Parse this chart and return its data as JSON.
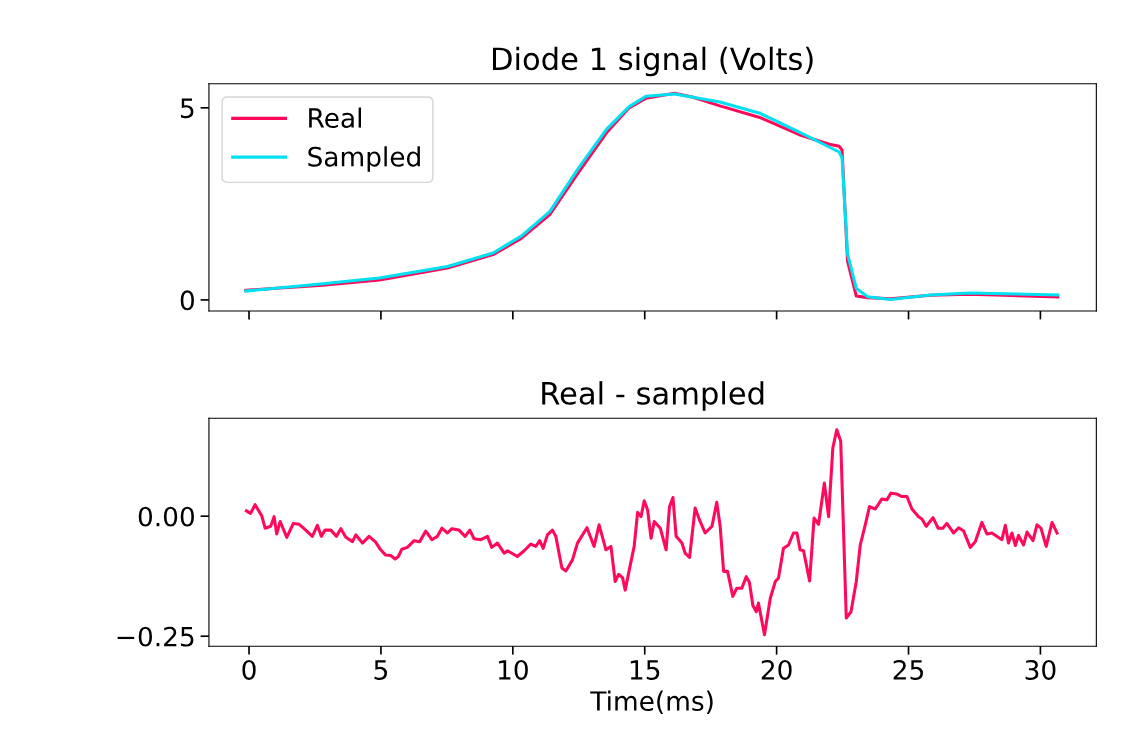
{
  "chart_data": [
    {
      "type": "line",
      "title": "Diode 1 signal (Volts)",
      "xlim": [
        -1.52,
        32.12
      ],
      "xticks": [
        0,
        5,
        10,
        15,
        20,
        25,
        30
      ],
      "ylim": [
        -0.29,
        5.625
      ],
      "yticks": [
        0,
        5
      ],
      "tick_labels": "y",
      "legend": "top left",
      "grid": false,
      "series": [
        {
          "name": "Real",
          "color": "#ff0a5a",
          "x": [
            -0.12,
            2.79,
            4.94,
            7.52,
            9.25,
            10.32,
            11.4,
            12.47,
            13.55,
            14.41,
            15.05,
            16.13,
            16.8,
            17.85,
            19.36,
            20.86,
            22.0,
            22.37,
            22.48,
            22.69,
            23.02,
            23.45,
            24.31,
            25.82,
            27.32,
            28.61,
            30.66
          ],
          "values": [
            0.25,
            0.38,
            0.52,
            0.83,
            1.18,
            1.6,
            2.22,
            3.3,
            4.35,
            5.0,
            5.25,
            5.38,
            5.28,
            5.05,
            4.75,
            4.3,
            4.05,
            4.0,
            3.9,
            1.0,
            0.1,
            0.06,
            0.03,
            0.12,
            0.15,
            0.12,
            0.08
          ]
        },
        {
          "name": "Sampled",
          "color": "#00e0f0",
          "x": [
            -0.12,
            2.79,
            4.94,
            7.52,
            9.25,
            10.32,
            11.4,
            12.47,
            13.55,
            14.41,
            15.05,
            16.13,
            17.85,
            19.36,
            20.86,
            22.37,
            22.48,
            22.69,
            23.02,
            23.45,
            24.31,
            25.82,
            27.32,
            28.61,
            30.66
          ],
          "values": [
            0.23,
            0.42,
            0.57,
            0.87,
            1.22,
            1.66,
            2.3,
            3.41,
            4.44,
            5.03,
            5.3,
            5.36,
            5.15,
            4.86,
            4.37,
            3.85,
            3.7,
            1.19,
            0.3,
            0.08,
            0.01,
            0.13,
            0.18,
            0.16,
            0.13
          ]
        }
      ]
    },
    {
      "type": "line",
      "title": "Real - sampled",
      "xlabel": "Time(ms)",
      "xlim": [
        -1.52,
        32.12
      ],
      "xticks": [
        0,
        5,
        10,
        15,
        20,
        25,
        30
      ],
      "ylim": [
        -0.271,
        0.204
      ],
      "yticks": [
        {
          "value": 0,
          "label": "0.00"
        },
        {
          "value": -0.25,
          "label": "−0.25"
        }
      ],
      "grid": false,
      "series": [
        {
          "color": "#ff0a5a",
          "x": [
            -0.1,
            0.06,
            0.23,
            0.48,
            0.61,
            0.82,
            0.95,
            1.05,
            1.18,
            1.43,
            1.68,
            1.9,
            2.15,
            2.4,
            2.59,
            2.74,
            2.88,
            3.1,
            3.31,
            3.48,
            3.67,
            3.92,
            4.05,
            4.3,
            4.55,
            4.8,
            4.99,
            5.18,
            5.37,
            5.54,
            5.66,
            5.79,
            6.0,
            6.26,
            6.47,
            6.7,
            6.93,
            7.14,
            7.31,
            7.52,
            7.69,
            7.96,
            8.19,
            8.37,
            8.53,
            8.79,
            9.04,
            9.2,
            9.42,
            9.67,
            9.8,
            10.17,
            10.43,
            10.68,
            10.87,
            11.02,
            11.15,
            11.31,
            11.5,
            11.63,
            11.86,
            12.01,
            12.26,
            12.45,
            12.81,
            13.08,
            13.27,
            13.53,
            13.72,
            13.88,
            14.01,
            14.16,
            14.26,
            14.44,
            14.6,
            14.73,
            14.86,
            14.98,
            15.11,
            15.24,
            15.36,
            15.59,
            15.81,
            15.94,
            16.07,
            16.19,
            16.41,
            16.53,
            16.7,
            16.91,
            17.1,
            17.29,
            17.55,
            17.73,
            17.86,
            17.99,
            18.14,
            18.34,
            18.49,
            18.68,
            18.85,
            18.97,
            19.1,
            19.23,
            19.31,
            19.54,
            19.76,
            19.95,
            20.07,
            20.26,
            20.45,
            20.64,
            20.77,
            20.89,
            21.02,
            21.25,
            21.42,
            21.59,
            21.81,
            21.97,
            22.13,
            22.28,
            22.43,
            22.64,
            22.82,
            23.02,
            23.17,
            23.36,
            23.52,
            23.74,
            23.99,
            24.18,
            24.33,
            24.56,
            24.75,
            24.94,
            25.13,
            25.38,
            25.51,
            25.67,
            25.93,
            26.12,
            26.3,
            26.45,
            26.71,
            26.9,
            27.09,
            27.34,
            27.53,
            27.78,
            27.97,
            28.16,
            28.54,
            28.67,
            28.79,
            28.92,
            29.05,
            29.17,
            29.36,
            29.49,
            29.72,
            29.87,
            30.02,
            30.22,
            30.44,
            30.63
          ],
          "values": [
            0.011,
            0.006,
            0.024,
            0.001,
            -0.025,
            -0.021,
            -0.001,
            -0.037,
            -0.011,
            -0.044,
            -0.015,
            -0.017,
            -0.029,
            -0.042,
            -0.019,
            -0.042,
            -0.029,
            -0.029,
            -0.042,
            -0.026,
            -0.044,
            -0.053,
            -0.039,
            -0.056,
            -0.042,
            -0.054,
            -0.07,
            -0.081,
            -0.082,
            -0.089,
            -0.084,
            -0.069,
            -0.065,
            -0.051,
            -0.053,
            -0.031,
            -0.049,
            -0.042,
            -0.025,
            -0.035,
            -0.026,
            -0.029,
            -0.042,
            -0.029,
            -0.047,
            -0.049,
            -0.042,
            -0.065,
            -0.056,
            -0.077,
            -0.072,
            -0.084,
            -0.072,
            -0.058,
            -0.063,
            -0.051,
            -0.067,
            -0.039,
            -0.029,
            -0.042,
            -0.108,
            -0.114,
            -0.091,
            -0.056,
            -0.024,
            -0.063,
            -0.018,
            -0.07,
            -0.063,
            -0.136,
            -0.121,
            -0.128,
            -0.154,
            -0.105,
            -0.063,
            0.008,
            -0.001,
            0.032,
            0.013,
            -0.046,
            -0.011,
            -0.025,
            -0.07,
            0.02,
            0.039,
            -0.042,
            -0.056,
            -0.077,
            -0.086,
            0.017,
            -0.011,
            -0.035,
            -0.021,
            0.029,
            -0.021,
            -0.115,
            -0.115,
            -0.167,
            -0.15,
            -0.15,
            -0.126,
            -0.138,
            -0.186,
            -0.199,
            -0.181,
            -0.247,
            -0.171,
            -0.136,
            -0.129,
            -0.067,
            -0.06,
            -0.035,
            -0.035,
            -0.07,
            -0.072,
            -0.135,
            -0.004,
            -0.017,
            0.069,
            -0.001,
            0.142,
            0.18,
            0.156,
            -0.212,
            -0.199,
            -0.136,
            -0.06,
            -0.018,
            0.02,
            0.015,
            0.036,
            0.034,
            0.048,
            0.046,
            0.041,
            0.041,
            0.015,
            -0.001,
            -0.006,
            -0.021,
            -0.003,
            -0.025,
            -0.025,
            -0.015,
            -0.035,
            -0.024,
            -0.031,
            -0.065,
            -0.053,
            -0.013,
            -0.037,
            -0.035,
            -0.049,
            -0.019,
            -0.056,
            -0.035,
            -0.061,
            -0.04,
            -0.06,
            -0.033,
            -0.051,
            -0.018,
            -0.025,
            -0.063,
            -0.013,
            -0.035
          ]
        }
      ]
    }
  ]
}
